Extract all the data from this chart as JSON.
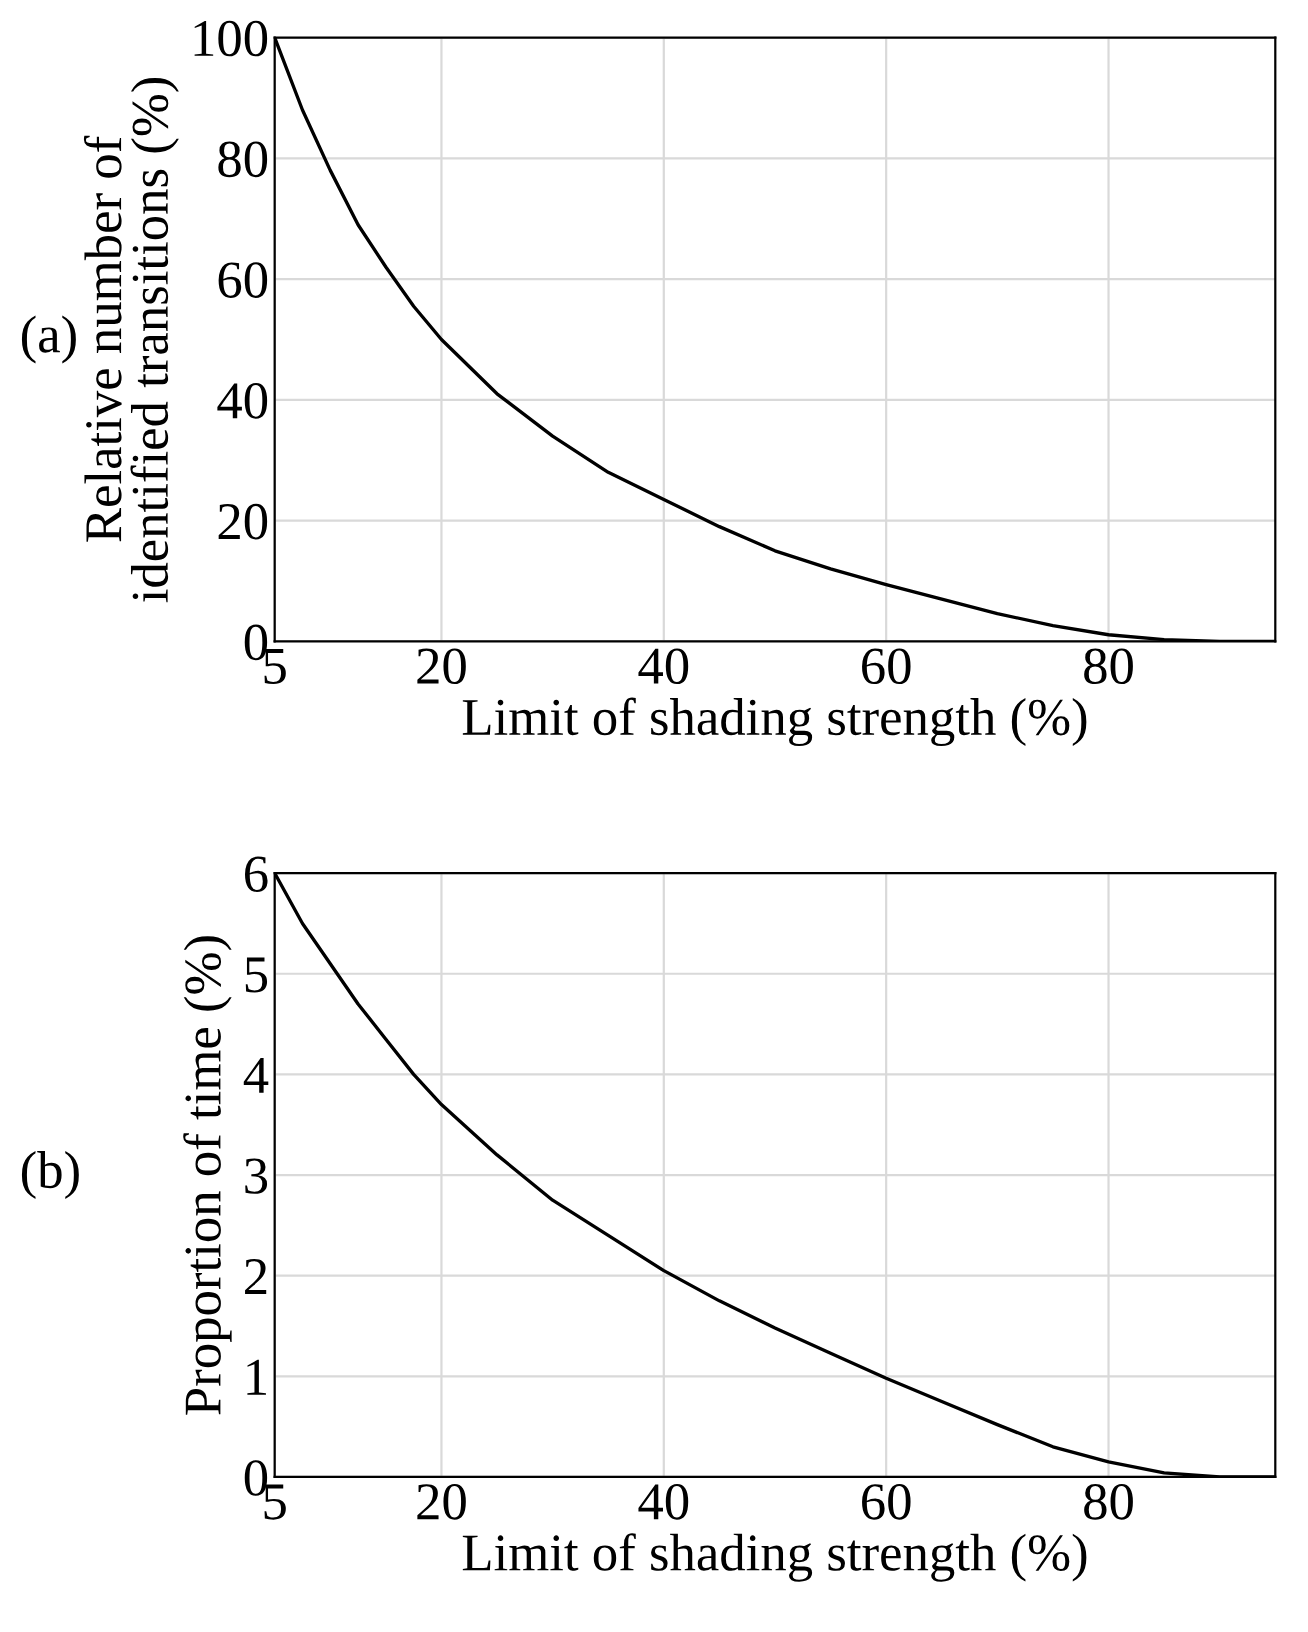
{
  "chart_data": [
    {
      "type": "line",
      "xlabel": "Limit of shading strength (%)",
      "ylabel": "Relative number of\nidentified transitions (%)",
      "annotations": [
        "(a)"
      ],
      "x": [
        5,
        7.5,
        10,
        12.5,
        15,
        17.5,
        20,
        25,
        30,
        35,
        40,
        45,
        50,
        55,
        60,
        65,
        70,
        75,
        80,
        85,
        90,
        95
      ],
      "series": [
        {
          "color": "#000000",
          "values": [
            100,
            88,
            78,
            69,
            62,
            55.5,
            50,
            41,
            34,
            28,
            23.5,
            19,
            15,
            12,
            9.4,
            7,
            4.6,
            2.6,
            1.1,
            0.3,
            0,
            0
          ]
        }
      ],
      "xlim": [
        5,
        95
      ],
      "ylim": [
        0,
        100
      ],
      "xticks": [
        5,
        20,
        40,
        60,
        80
      ],
      "yticks": [
        0,
        20,
        40,
        60,
        80,
        100
      ],
      "grid": true,
      "marker": "none",
      "line_style": "solid"
    },
    {
      "type": "line",
      "xlabel": "Limit of shading strength (%)",
      "ylabel": "Proportion of time (%)",
      "annotations": [
        "(b)"
      ],
      "x": [
        5,
        7.5,
        10,
        12.5,
        15,
        17.5,
        20,
        25,
        30,
        35,
        40,
        45,
        50,
        55,
        60,
        65,
        70,
        75,
        80,
        85,
        90,
        95
      ],
      "series": [
        {
          "color": "#000000",
          "values": [
            6.0,
            5.5,
            5.1,
            4.7,
            4.35,
            4.0,
            3.7,
            3.2,
            2.75,
            2.4,
            2.05,
            1.75,
            1.48,
            1.23,
            0.98,
            0.75,
            0.52,
            0.3,
            0.15,
            0.04,
            0,
            0
          ]
        }
      ],
      "xlim": [
        5,
        95
      ],
      "ylim": [
        0,
        6
      ],
      "xticks": [
        5,
        20,
        40,
        60,
        80
      ],
      "yticks": [
        0,
        1,
        2,
        3,
        4,
        5,
        6
      ],
      "grid": true,
      "marker": "none",
      "line_style": "solid"
    }
  ]
}
